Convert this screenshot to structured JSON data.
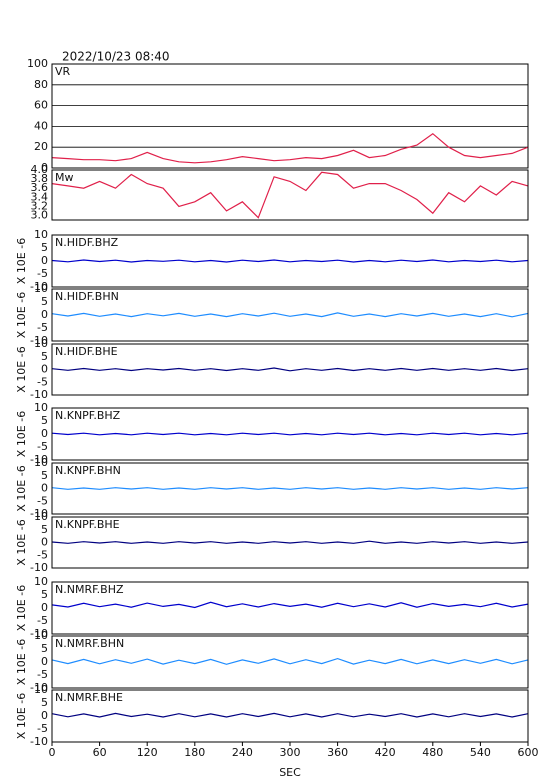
{
  "chart_data": [
    {
      "type": "line",
      "title": "2022/10/23 08:40",
      "label": "VR",
      "color": "#e0204a",
      "grid": true,
      "x": [
        0,
        20,
        40,
        60,
        80,
        100,
        120,
        140,
        160,
        180,
        200,
        220,
        240,
        260,
        280,
        300,
        320,
        340,
        360,
        380,
        400,
        420,
        440,
        460,
        480,
        500,
        520,
        540,
        560,
        580,
        600
      ],
      "values": [
        10,
        9,
        8,
        8,
        7,
        9,
        15,
        9,
        6,
        5,
        6,
        8,
        11,
        9,
        7,
        8,
        10,
        9,
        12,
        17,
        10,
        12,
        18,
        22,
        33,
        20,
        12,
        10,
        12,
        14,
        20
      ],
      "ylim": [
        0,
        100
      ],
      "yticks": [
        0,
        20,
        40,
        60,
        80,
        100
      ]
    },
    {
      "type": "line",
      "label": "Mw",
      "color": "#e0204a",
      "x": [
        0,
        20,
        40,
        60,
        80,
        100,
        120,
        140,
        160,
        180,
        200,
        220,
        240,
        260,
        280,
        300,
        320,
        340,
        360,
        380,
        400,
        420,
        440,
        460,
        480,
        500,
        520,
        540,
        560,
        580,
        600
      ],
      "values": [
        3.7,
        3.65,
        3.6,
        3.75,
        3.6,
        3.9,
        3.7,
        3.6,
        3.2,
        3.3,
        3.5,
        3.1,
        3.3,
        2.95,
        3.85,
        3.75,
        3.55,
        3.95,
        3.9,
        3.6,
        3.7,
        3.7,
        3.55,
        3.35,
        3.05,
        3.5,
        3.3,
        3.65,
        3.45,
        3.75,
        3.65
      ],
      "ylim": [
        2.9,
        4.0
      ],
      "yticks": [
        {
          "value": 3,
          "label": "3.0"
        },
        3.2,
        3.4,
        3.6,
        3.8,
        {
          "value": 4,
          "label": "4.0"
        }
      ]
    },
    {
      "type": "line",
      "label": "N.HIDF.BHZ",
      "y_label": "X 10E -6",
      "color": "#0000cc",
      "x": [
        0,
        20,
        40,
        60,
        80,
        100,
        120,
        140,
        160,
        180,
        200,
        220,
        240,
        260,
        280,
        300,
        320,
        340,
        360,
        380,
        400,
        420,
        440,
        460,
        480,
        500,
        520,
        540,
        560,
        580,
        600
      ],
      "values": [
        0.2,
        -0.3,
        0.4,
        -0.2,
        0.3,
        -0.4,
        0.2,
        -0.1,
        0.3,
        -0.3,
        0.2,
        -0.4,
        0.3,
        -0.2,
        0.4,
        -0.3,
        0.2,
        -0.2,
        0.3,
        -0.4,
        0.2,
        -0.3,
        0.3,
        -0.2,
        0.4,
        -0.3,
        0.2,
        -0.2,
        0.3,
        -0.3,
        0.2
      ],
      "ylim": [
        -10,
        10
      ],
      "yticks": [
        -10,
        -5,
        0,
        5,
        10
      ]
    },
    {
      "type": "line",
      "label": "N.HIDF.BHN",
      "y_label": "X 10E -6",
      "color": "#1e8cff",
      "x": [
        0,
        20,
        40,
        60,
        80,
        100,
        120,
        140,
        160,
        180,
        200,
        220,
        240,
        260,
        280,
        300,
        320,
        340,
        360,
        380,
        400,
        420,
        440,
        460,
        480,
        500,
        520,
        540,
        560,
        580,
        600
      ],
      "values": [
        0.5,
        -0.4,
        0.6,
        -0.5,
        0.4,
        -0.6,
        0.5,
        -0.3,
        0.6,
        -0.5,
        0.4,
        -0.6,
        0.5,
        -0.4,
        0.7,
        -0.5,
        0.4,
        -0.6,
        0.8,
        -0.5,
        0.4,
        -0.6,
        0.5,
        -0.4,
        0.6,
        -0.5,
        0.4,
        -0.6,
        0.5,
        -0.7,
        0.6
      ],
      "ylim": [
        -10,
        10
      ],
      "yticks": [
        -10,
        -5,
        0,
        5,
        10
      ]
    },
    {
      "type": "line",
      "label": "N.HIDF.BHE",
      "y_label": "X 10E -6",
      "color": "#000080",
      "x": [
        0,
        20,
        40,
        60,
        80,
        100,
        120,
        140,
        160,
        180,
        200,
        220,
        240,
        260,
        280,
        300,
        320,
        340,
        360,
        380,
        400,
        420,
        440,
        460,
        480,
        500,
        520,
        540,
        560,
        580,
        600
      ],
      "values": [
        0.3,
        -0.3,
        0.4,
        -0.3,
        0.3,
        -0.4,
        0.3,
        -0.2,
        0.4,
        -0.3,
        0.3,
        -0.4,
        0.3,
        -0.3,
        0.6,
        -0.5,
        0.3,
        -0.3,
        0.4,
        -0.4,
        0.3,
        -0.3,
        0.4,
        -0.3,
        0.4,
        -0.3,
        0.3,
        -0.3,
        0.4,
        -0.4,
        0.3
      ],
      "ylim": [
        -10,
        10
      ],
      "yticks": [
        -10,
        -5,
        0,
        5,
        10
      ]
    },
    {
      "type": "line",
      "label": "N.KNPF.BHZ",
      "y_label": "X 10E -6",
      "color": "#0000cc",
      "x": [
        0,
        20,
        40,
        60,
        80,
        100,
        120,
        140,
        160,
        180,
        200,
        220,
        240,
        260,
        280,
        300,
        320,
        340,
        360,
        380,
        400,
        420,
        440,
        460,
        480,
        500,
        520,
        540,
        560,
        580,
        600
      ],
      "values": [
        0.3,
        -0.2,
        0.3,
        -0.3,
        0.2,
        -0.3,
        0.3,
        -0.2,
        0.3,
        -0.3,
        0.2,
        -0.3,
        0.3,
        -0.2,
        0.3,
        -0.3,
        0.2,
        -0.3,
        0.3,
        -0.2,
        0.3,
        -0.3,
        0.2,
        -0.3,
        0.3,
        -0.2,
        0.3,
        -0.3,
        0.2,
        -0.3,
        0.3
      ],
      "ylim": [
        -10,
        10
      ],
      "yticks": [
        -10,
        -5,
        0,
        5,
        10
      ]
    },
    {
      "type": "line",
      "label": "N.KNPF.BHN",
      "y_label": "X 10E -6",
      "color": "#1e8cff",
      "x": [
        0,
        20,
        40,
        60,
        80,
        100,
        120,
        140,
        160,
        180,
        200,
        220,
        240,
        260,
        280,
        300,
        320,
        340,
        360,
        380,
        400,
        420,
        440,
        460,
        480,
        500,
        520,
        540,
        560,
        580,
        600
      ],
      "values": [
        0.3,
        -0.3,
        0.2,
        -0.3,
        0.3,
        -0.2,
        0.3,
        -0.3,
        0.2,
        -0.3,
        0.3,
        -0.2,
        0.3,
        -0.3,
        0.2,
        -0.3,
        0.3,
        -0.2,
        0.3,
        -0.3,
        0.2,
        -0.3,
        0.3,
        -0.2,
        0.3,
        -0.3,
        0.2,
        -0.3,
        0.3,
        -0.2,
        0.3
      ],
      "ylim": [
        -10,
        10
      ],
      "yticks": [
        -10,
        -5,
        0,
        5,
        10
      ]
    },
    {
      "type": "line",
      "label": "N.KNPF.BHE",
      "y_label": "X 10E -6",
      "color": "#000080",
      "x": [
        0,
        20,
        40,
        60,
        80,
        100,
        120,
        140,
        160,
        180,
        200,
        220,
        240,
        260,
        280,
        300,
        320,
        340,
        360,
        380,
        400,
        420,
        440,
        460,
        480,
        500,
        520,
        540,
        560,
        580,
        600
      ],
      "values": [
        0.2,
        -0.3,
        0.3,
        -0.2,
        0.3,
        -0.3,
        0.2,
        -0.3,
        0.3,
        -0.2,
        0.3,
        -0.3,
        0.2,
        -0.3,
        0.3,
        -0.2,
        0.3,
        -0.3,
        0.2,
        -0.3,
        0.5,
        -0.3,
        0.2,
        -0.3,
        0.3,
        -0.2,
        0.3,
        -0.3,
        0.2,
        -0.3,
        0.2
      ],
      "ylim": [
        -10,
        10
      ],
      "yticks": [
        -10,
        -5,
        0,
        5,
        10
      ]
    },
    {
      "type": "line",
      "label": "N.NMRF.BHZ",
      "y_label": "X 10E -6",
      "color": "#0000cc",
      "x": [
        0,
        20,
        40,
        60,
        80,
        100,
        120,
        140,
        160,
        180,
        200,
        220,
        240,
        260,
        280,
        300,
        320,
        340,
        360,
        380,
        400,
        420,
        440,
        460,
        480,
        500,
        520,
        540,
        560,
        580,
        600
      ],
      "values": [
        1.2,
        0.4,
        1.8,
        0.5,
        1.5,
        0.3,
        1.9,
        0.6,
        1.4,
        0.2,
        2.2,
        0.5,
        1.6,
        0.4,
        1.7,
        0.6,
        1.5,
        0.3,
        1.8,
        0.5,
        1.6,
        0.4,
        2.0,
        0.3,
        1.7,
        0.6,
        1.4,
        0.5,
        1.8,
        0.4,
        1.5
      ],
      "ylim": [
        -10,
        10
      ],
      "yticks": [
        -10,
        -5,
        0,
        5,
        10
      ]
    },
    {
      "type": "line",
      "label": "N.NMRF.BHN",
      "y_label": "X 10E -6",
      "color": "#1e8cff",
      "x": [
        0,
        20,
        40,
        60,
        80,
        100,
        120,
        140,
        160,
        180,
        200,
        220,
        240,
        260,
        280,
        300,
        320,
        340,
        360,
        380,
        400,
        420,
        440,
        460,
        480,
        500,
        520,
        540,
        560,
        580,
        600
      ],
      "values": [
        0.8,
        -0.6,
        1.0,
        -0.7,
        0.9,
        -0.5,
        1.1,
        -0.8,
        0.7,
        -0.6,
        1.0,
        -0.9,
        0.8,
        -0.5,
        1.2,
        -0.7,
        0.9,
        -0.6,
        1.3,
        -0.8,
        0.7,
        -0.6,
        1.0,
        -0.7,
        0.8,
        -0.6,
        0.9,
        -0.5,
        1.0,
        -0.7,
        0.8
      ],
      "ylim": [
        -10,
        10
      ],
      "yticks": [
        -10,
        -5,
        0,
        5,
        10
      ]
    },
    {
      "type": "line",
      "label": "N.NMRF.BHE",
      "y_label": "X 10E -6",
      "color": "#000080",
      "x": [
        0,
        20,
        40,
        60,
        80,
        100,
        120,
        140,
        160,
        180,
        200,
        220,
        240,
        260,
        280,
        300,
        320,
        340,
        360,
        380,
        400,
        420,
        440,
        460,
        480,
        500,
        520,
        540,
        560,
        580,
        600
      ],
      "values": [
        0.9,
        -0.3,
        0.8,
        -0.4,
        1.0,
        -0.2,
        0.7,
        -0.4,
        0.9,
        -0.3,
        0.8,
        -0.4,
        0.9,
        -0.2,
        1.0,
        -0.3,
        0.8,
        -0.4,
        0.9,
        -0.3,
        0.7,
        -0.2,
        0.9,
        -0.4,
        0.8,
        -0.3,
        0.9,
        -0.2,
        0.8,
        -0.4,
        0.9
      ],
      "ylim": [
        -10,
        10
      ],
      "yticks": [
        -10,
        -5,
        0,
        5,
        10
      ],
      "x_label": "SEC",
      "xlim": [
        0,
        600
      ],
      "xticks": [
        0,
        60,
        120,
        180,
        240,
        300,
        360,
        420,
        480,
        540,
        600
      ]
    }
  ]
}
